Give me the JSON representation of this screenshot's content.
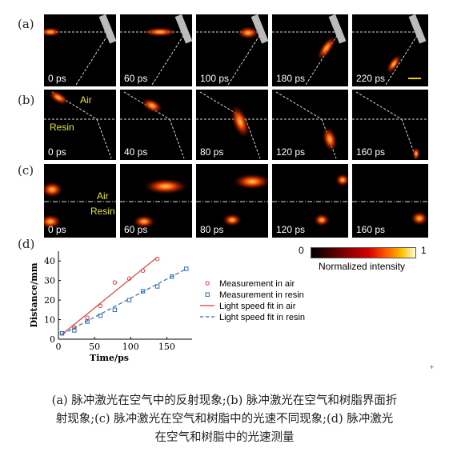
{
  "figure": {
    "row_labels": [
      "(a)",
      "(b)",
      "(c)",
      "(d)"
    ],
    "row_a": {
      "times": [
        "0 ps",
        "60 ps",
        "100 ps",
        "180 ps",
        "220 ps"
      ]
    },
    "row_b": {
      "times": [
        "0 ps",
        "40 ps",
        "80 ps",
        "120 ps",
        "160 ps"
      ],
      "air_label": "Air",
      "resin_label": "Resin"
    },
    "row_c": {
      "times": [
        "0 ps",
        "60 ps",
        "80 ps",
        "120 ps",
        "160 ps"
      ],
      "air_label": "Air",
      "resin_label": "Resin"
    },
    "colorbar": {
      "min_label": "0",
      "max_label": "1",
      "title": "Normalized intensity"
    }
  },
  "chart_data": {
    "type": "scatter",
    "xlabel": "Time/ps",
    "ylabel": "Distance/mm",
    "xlim": [
      0,
      185
    ],
    "ylim": [
      0,
      45
    ],
    "xticks": [
      0,
      50,
      100,
      150
    ],
    "yticks": [
      0,
      10,
      20,
      30,
      40
    ],
    "legend_position": "right",
    "series": [
      {
        "name": "Measurement in air",
        "kind": "points",
        "marker": "circle",
        "color": "#e23b3b",
        "x": [
          5,
          22,
          40,
          58,
          78,
          98,
          117,
          137
        ],
        "y": [
          3,
          6,
          11,
          17,
          29,
          31,
          35,
          41
        ]
      },
      {
        "name": "Measurement in resin",
        "kind": "points",
        "marker": "square",
        "color": "#2f6db5",
        "x": [
          5,
          22,
          40,
          58,
          78,
          98,
          117,
          137,
          157,
          177
        ],
        "y": [
          3,
          4.5,
          9,
          12,
          15,
          20,
          24.5,
          27,
          32,
          36
        ]
      },
      {
        "name": "Light speed fit in air",
        "kind": "line",
        "style": "solid",
        "color": "#e23b3b",
        "x": [
          5,
          137
        ],
        "y": [
          2.5,
          42
        ]
      },
      {
        "name": "Light speed fit in resin",
        "kind": "line",
        "style": "dashed",
        "color": "#2f6db5",
        "x": [
          5,
          177
        ],
        "y": [
          2.5,
          36
        ]
      }
    ]
  },
  "caption": {
    "line1": "(a) 脉冲激光在空气中的反射现象;(b) 脉冲激光在空气和树脂界面折",
    "line2": "射现象;(c) 脉冲激光在空气和树脂中的光速不同现象;(d) 脉冲激光",
    "line3": "在空气和树脂中的光速测量"
  }
}
